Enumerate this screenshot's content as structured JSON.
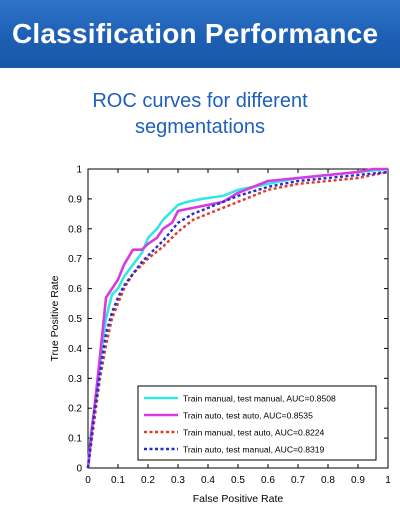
{
  "slide": {
    "banner_title": "Classification Performance",
    "chart_title_line1": "ROC curves for different",
    "chart_title_line2": "segmentations"
  },
  "colors": {
    "banner": "#1d5fb4",
    "title_text": "#1f5fbd",
    "series_cyan": "#33e6e6",
    "series_magenta": "#d83ae0",
    "series_red": "#e03a2a",
    "series_blue": "#2a2ad0"
  },
  "chart_data": {
    "type": "line",
    "title": "ROC curves for different segmentations",
    "xlabel": "False Positive Rate",
    "ylabel": "True Positive Rate",
    "xlim": [
      0,
      1
    ],
    "ylim": [
      0,
      1
    ],
    "xticks": [
      "0",
      "0.1",
      "0.2",
      "0.3",
      "0.4",
      "0.5",
      "0.6",
      "0.7",
      "0.8",
      "0.9",
      "1"
    ],
    "yticks": [
      "0",
      "0.1",
      "0.2",
      "0.3",
      "0.4",
      "0.5",
      "0.6",
      "0.7",
      "0.8",
      "0.9",
      "1"
    ],
    "grid": false,
    "legend_position": "bottom-right",
    "series": [
      {
        "name": "Train manual, test manual, AUC=0.8508",
        "color": "#33e6e6",
        "style": "solid",
        "points": [
          [
            0,
            0
          ],
          [
            0.01,
            0.12
          ],
          [
            0.03,
            0.25
          ],
          [
            0.05,
            0.43
          ],
          [
            0.06,
            0.5
          ],
          [
            0.08,
            0.58
          ],
          [
            0.1,
            0.6
          ],
          [
            0.12,
            0.64
          ],
          [
            0.15,
            0.68
          ],
          [
            0.18,
            0.72
          ],
          [
            0.2,
            0.77
          ],
          [
            0.23,
            0.8
          ],
          [
            0.25,
            0.83
          ],
          [
            0.28,
            0.86
          ],
          [
            0.3,
            0.88
          ],
          [
            0.33,
            0.89
          ],
          [
            0.38,
            0.9
          ],
          [
            0.45,
            0.91
          ],
          [
            0.5,
            0.93
          ],
          [
            0.6,
            0.95
          ],
          [
            0.7,
            0.97
          ],
          [
            0.8,
            0.98
          ],
          [
            0.9,
            0.99
          ],
          [
            1,
            1
          ]
        ]
      },
      {
        "name": "Train auto, test auto, AUC=0.8535",
        "color": "#d83ae0",
        "style": "solid",
        "points": [
          [
            0,
            0
          ],
          [
            0.01,
            0.1
          ],
          [
            0.03,
            0.28
          ],
          [
            0.05,
            0.47
          ],
          [
            0.06,
            0.57
          ],
          [
            0.08,
            0.6
          ],
          [
            0.1,
            0.63
          ],
          [
            0.12,
            0.68
          ],
          [
            0.15,
            0.73
          ],
          [
            0.18,
            0.73
          ],
          [
            0.2,
            0.75
          ],
          [
            0.23,
            0.77
          ],
          [
            0.25,
            0.8
          ],
          [
            0.28,
            0.82
          ],
          [
            0.3,
            0.86
          ],
          [
            0.35,
            0.87
          ],
          [
            0.4,
            0.88
          ],
          [
            0.45,
            0.89
          ],
          [
            0.5,
            0.92
          ],
          [
            0.6,
            0.96
          ],
          [
            0.7,
            0.97
          ],
          [
            0.8,
            0.98
          ],
          [
            0.9,
            0.99
          ],
          [
            0.95,
            1
          ],
          [
            1,
            1
          ]
        ]
      },
      {
        "name": "Train manual, test auto, AUC=0.8224",
        "color": "#e03a2a",
        "style": "dotted",
        "points": [
          [
            0,
            0
          ],
          [
            0.02,
            0.15
          ],
          [
            0.04,
            0.3
          ],
          [
            0.06,
            0.41
          ],
          [
            0.08,
            0.5
          ],
          [
            0.1,
            0.55
          ],
          [
            0.12,
            0.6
          ],
          [
            0.15,
            0.65
          ],
          [
            0.18,
            0.68
          ],
          [
            0.2,
            0.7
          ],
          [
            0.25,
            0.74
          ],
          [
            0.3,
            0.79
          ],
          [
            0.35,
            0.83
          ],
          [
            0.4,
            0.85
          ],
          [
            0.45,
            0.87
          ],
          [
            0.5,
            0.89
          ],
          [
            0.55,
            0.91
          ],
          [
            0.6,
            0.93
          ],
          [
            0.7,
            0.95
          ],
          [
            0.8,
            0.96
          ],
          [
            0.9,
            0.97
          ],
          [
            1,
            0.99
          ]
        ]
      },
      {
        "name": "Train auto, test manual, AUC=0.8319",
        "color": "#2a2ad0",
        "style": "dotted",
        "points": [
          [
            0,
            0
          ],
          [
            0.02,
            0.18
          ],
          [
            0.04,
            0.32
          ],
          [
            0.06,
            0.45
          ],
          [
            0.08,
            0.52
          ],
          [
            0.1,
            0.57
          ],
          [
            0.12,
            0.61
          ],
          [
            0.15,
            0.65
          ],
          [
            0.18,
            0.69
          ],
          [
            0.2,
            0.71
          ],
          [
            0.25,
            0.76
          ],
          [
            0.3,
            0.82
          ],
          [
            0.35,
            0.85
          ],
          [
            0.4,
            0.87
          ],
          [
            0.45,
            0.89
          ],
          [
            0.5,
            0.91
          ],
          [
            0.6,
            0.94
          ],
          [
            0.7,
            0.96
          ],
          [
            0.8,
            0.97
          ],
          [
            0.9,
            0.98
          ],
          [
            1,
            0.99
          ]
        ]
      }
    ]
  }
}
